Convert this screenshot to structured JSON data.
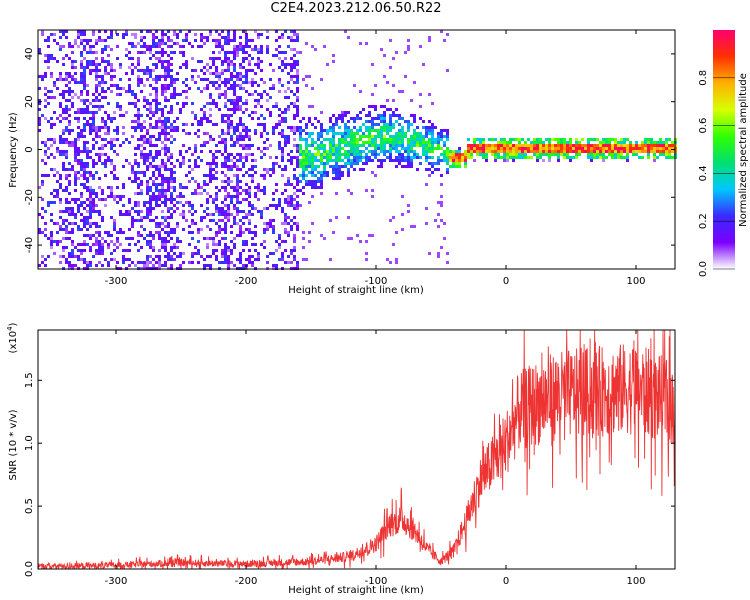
{
  "title": "C2E4.2023.212.06.50.R22",
  "chart_data": [
    {
      "type": "heatmap",
      "xlabel": "Height of straight line (km)",
      "ylabel": "Frequency (Hz)",
      "xlim": [
        -360,
        130
      ],
      "ylim": [
        -50,
        50
      ],
      "xticks": [
        -300,
        -200,
        -100,
        0,
        100
      ],
      "yticks": [
        -40,
        -20,
        0,
        20,
        40
      ],
      "colorbar": {
        "label": "Normalized spectral amplitude",
        "range": [
          0.0,
          1.0
        ],
        "ticks": [
          "0.0",
          "0.2",
          "0.4",
          "0.6",
          "0.8"
        ],
        "colors": [
          "#ffffff",
          "#7a00ff",
          "#3a2aff",
          "#00c8ff",
          "#00e070",
          "#30ff00",
          "#d8ff00",
          "#ffb000",
          "#ff3000",
          "#ff0070"
        ]
      },
      "regions": [
        {
          "x_range": [
            -360,
            -160
          ],
          "description_free": true,
          "mean_amplitude": 0.12
        },
        {
          "x_range": [
            -185,
            -45
          ],
          "center_freq": 2,
          "spread": 18,
          "mean_amplitude": 0.35
        },
        {
          "x_range": [
            -45,
            130
          ],
          "center_freq": 1,
          "spread": 3,
          "mean_amplitude": 0.75
        }
      ]
    },
    {
      "type": "line",
      "xlabel": "Height of straight line (km)",
      "ylabel": "SNR (10 * v/v)",
      "yscale_note": "(x10",
      "yscale_exp": "4",
      "xlim": [
        -360,
        130
      ],
      "ylim": [
        0,
        19000
      ],
      "xticks": [
        -300,
        -200,
        -100,
        0,
        100
      ],
      "yticks": [
        "0.0",
        "0.5",
        "1.0",
        "1.5"
      ],
      "color": "#ee3333",
      "x": [
        -360,
        -300,
        -250,
        -200,
        -150,
        -120,
        -100,
        -90,
        -80,
        -70,
        -60,
        -50,
        -40,
        -30,
        -20,
        -10,
        0,
        10,
        20,
        30,
        40,
        60,
        80,
        100,
        120,
        130
      ],
      "y": [
        200,
        300,
        500,
        400,
        600,
        1000,
        2000,
        3500,
        4000,
        3000,
        1500,
        600,
        1500,
        4000,
        7000,
        8500,
        10000,
        12500,
        13000,
        13500,
        13800,
        14000,
        14200,
        14400,
        13500,
        13000
      ]
    }
  ]
}
